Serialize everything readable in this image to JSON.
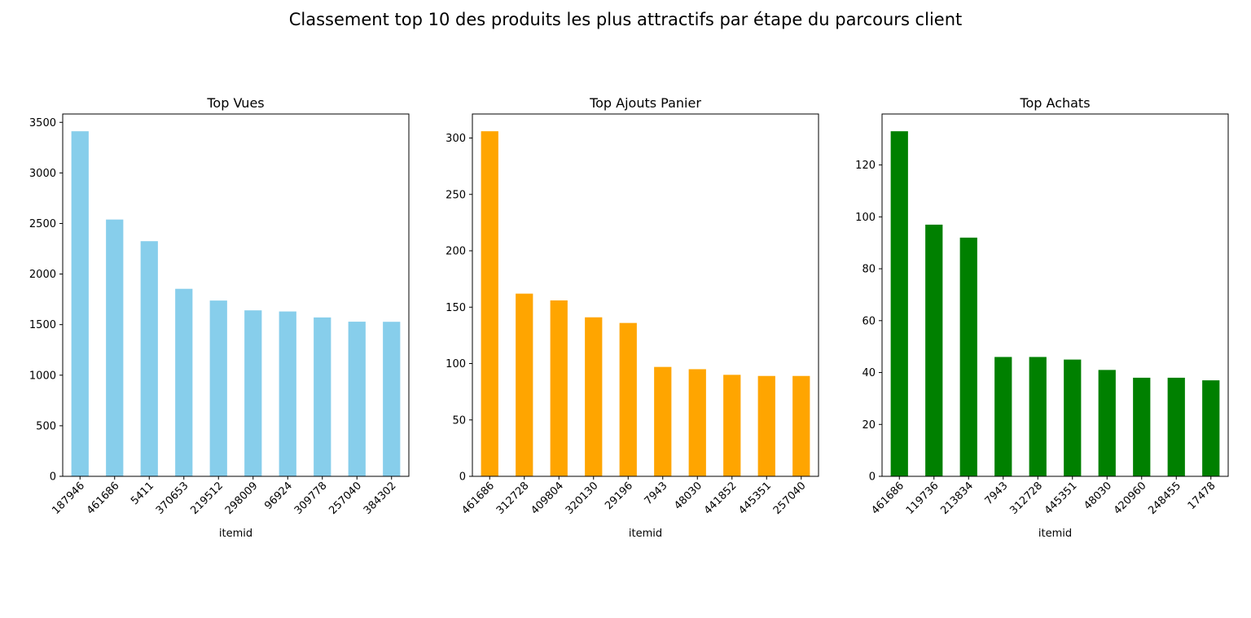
{
  "suptitle": "Classement top 10 des produits les plus attractifs par étape du parcours client",
  "chart_data": [
    {
      "type": "bar",
      "title": "Top Vues",
      "xlabel": "itemid",
      "ylabel": "",
      "color": "#87CEEB",
      "categories": [
        "187946",
        "461686",
        "5411",
        "370653",
        "219512",
        "298009",
        "96924",
        "309778",
        "257040",
        "384302"
      ],
      "values": [
        3412,
        2539,
        2325,
        1854,
        1738,
        1641,
        1630,
        1571,
        1529,
        1528
      ],
      "ylim": [
        0,
        3582.6
      ],
      "yticks": [
        0,
        500,
        1000,
        1500,
        2000,
        2500,
        3000,
        3500
      ],
      "grid": false
    },
    {
      "type": "bar",
      "title": "Top Ajouts Panier",
      "xlabel": "itemid",
      "ylabel": "",
      "color": "#FFA500",
      "categories": [
        "461686",
        "312728",
        "409804",
        "320130",
        "29196",
        "7943",
        "48030",
        "441852",
        "445351",
        "257040"
      ],
      "values": [
        306,
        162,
        156,
        141,
        136,
        97,
        95,
        90,
        89,
        89
      ],
      "ylim": [
        0,
        321.3
      ],
      "yticks": [
        0,
        50,
        100,
        150,
        200,
        250,
        300
      ],
      "grid": false
    },
    {
      "type": "bar",
      "title": "Top Achats",
      "xlabel": "itemid",
      "ylabel": "",
      "color": "#008000",
      "categories": [
        "461686",
        "119736",
        "213834",
        "7943",
        "312728",
        "445351",
        "48030",
        "420960",
        "248455",
        "17478"
      ],
      "values": [
        133,
        97,
        92,
        46,
        46,
        45,
        41,
        38,
        38,
        37
      ],
      "ylim": [
        0,
        139.65
      ],
      "yticks": [
        0,
        20,
        40,
        60,
        80,
        100,
        120
      ],
      "grid": false
    }
  ]
}
